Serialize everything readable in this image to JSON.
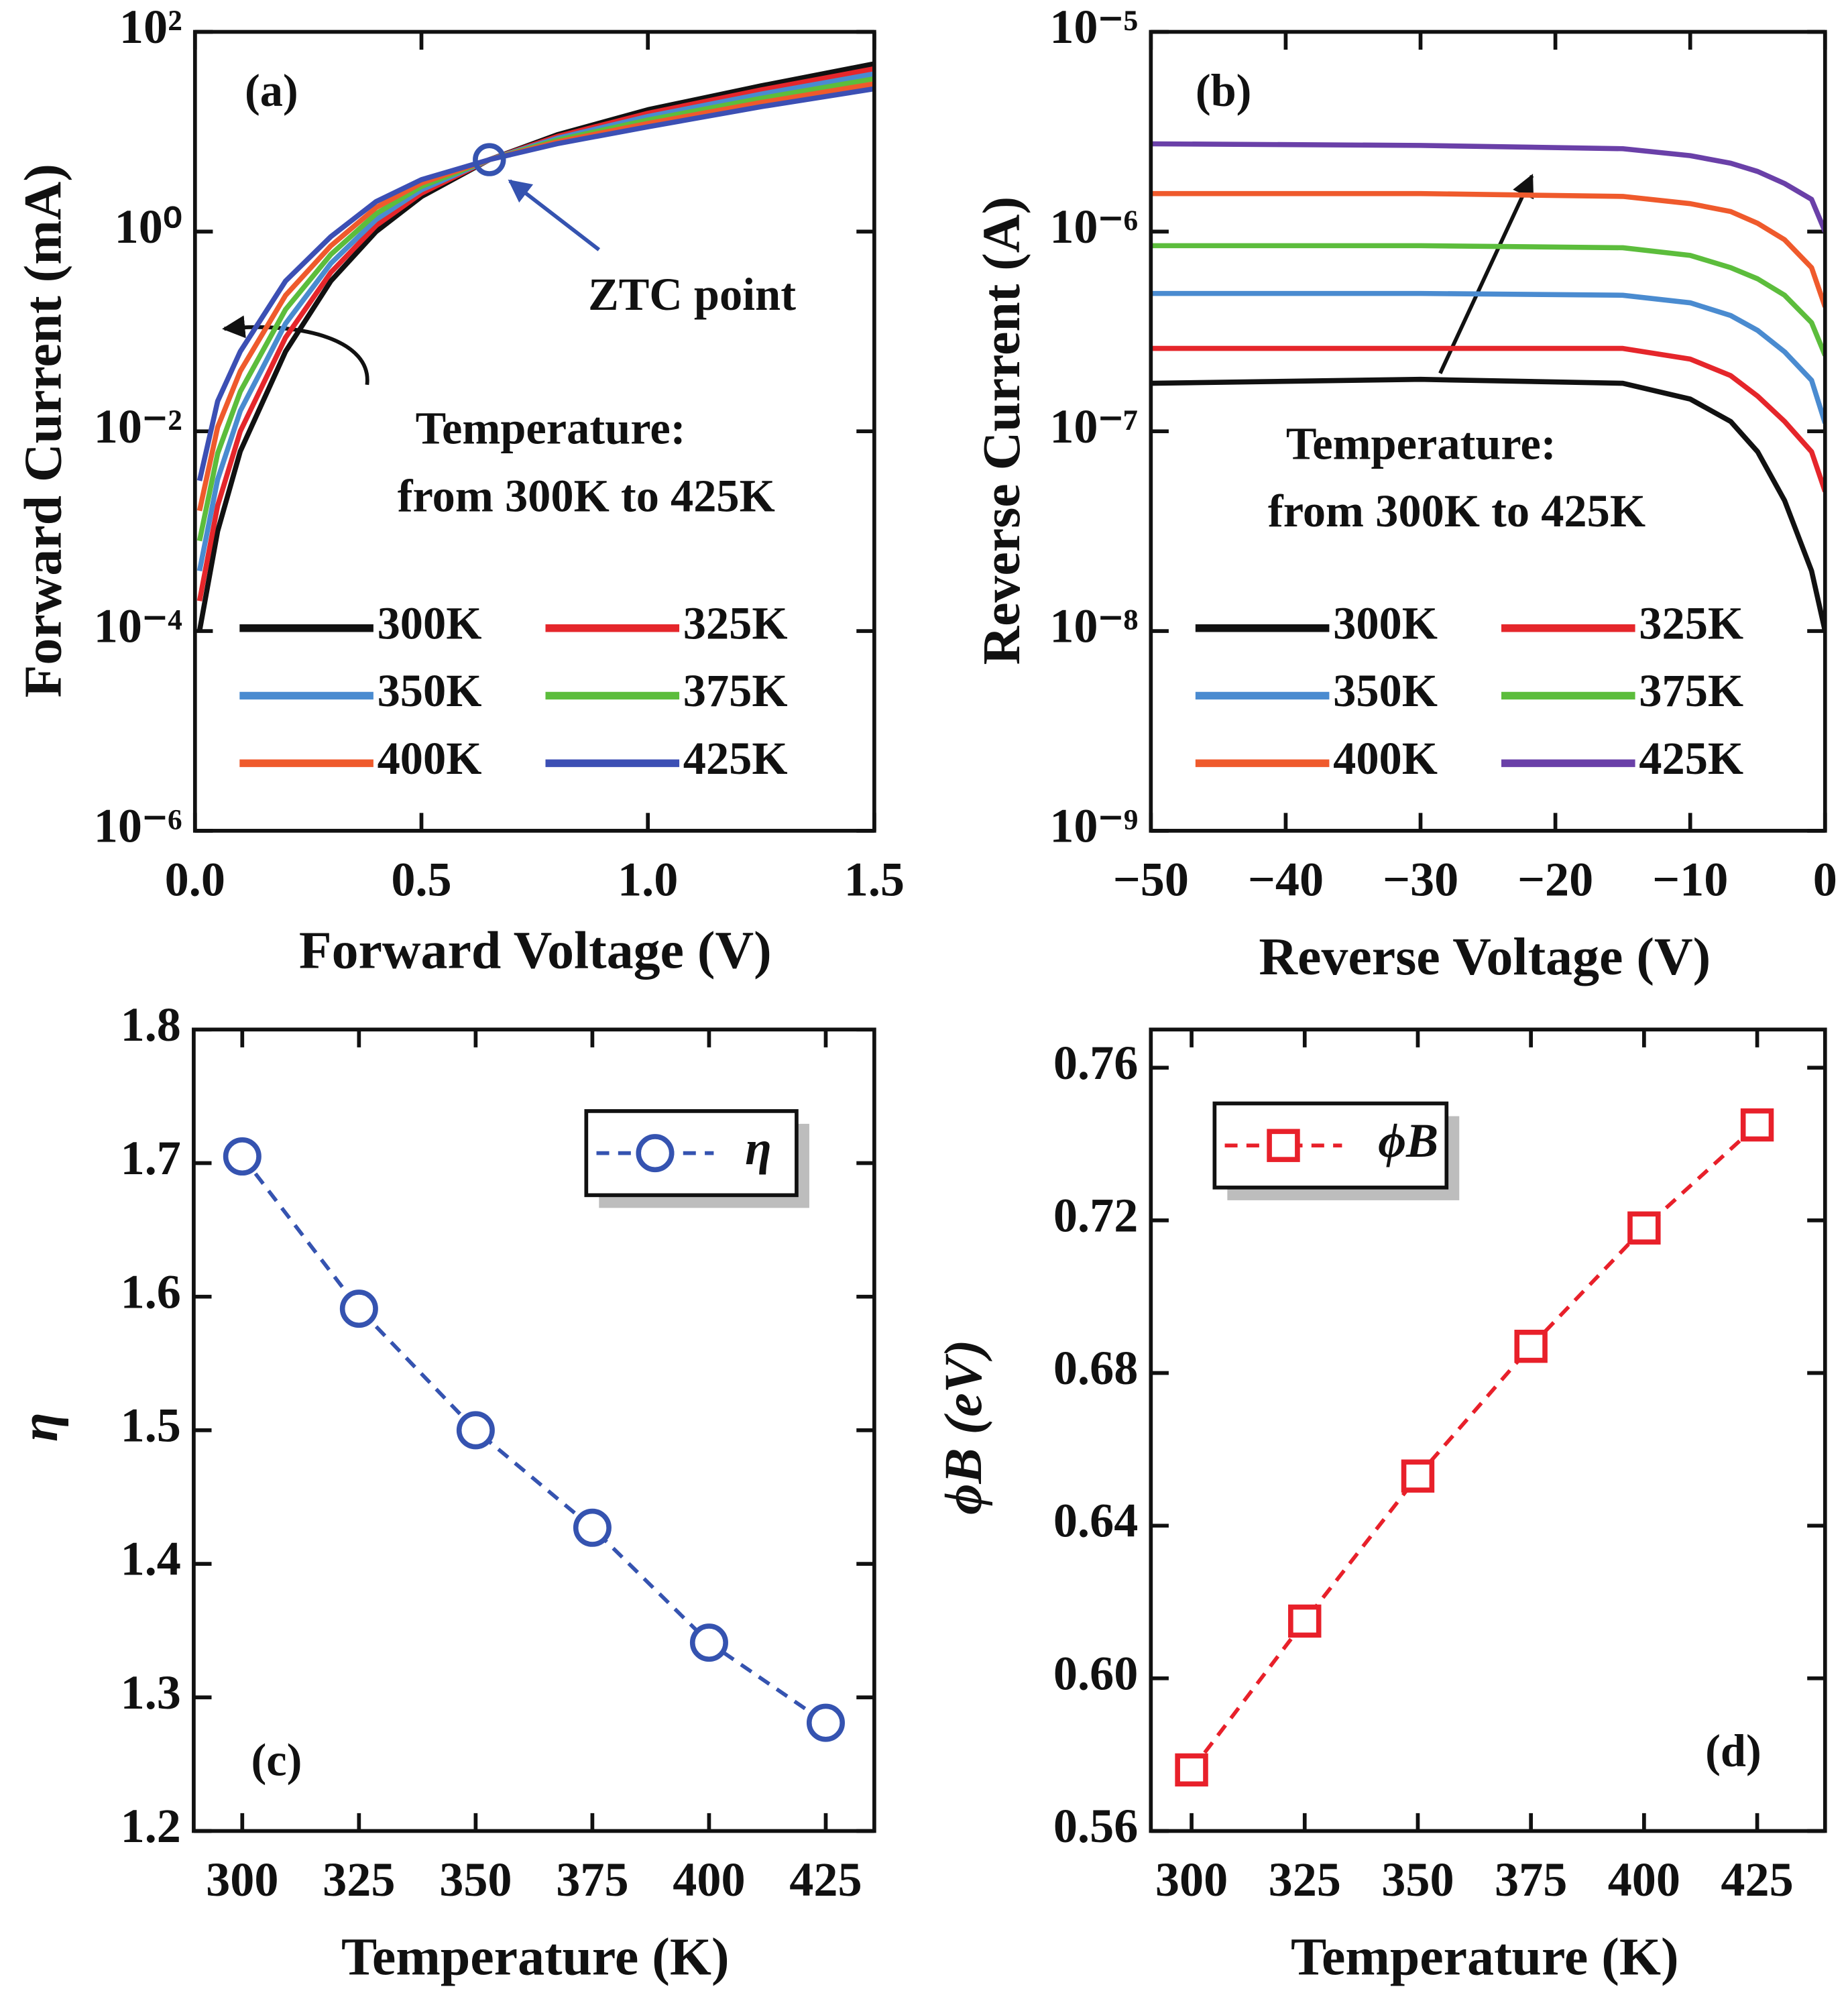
{
  "chart_data": [
    {
      "type": "line",
      "ylog": true,
      "xlabel": "Forward Voltage (V)",
      "ylabel": "Forward Current (mA)",
      "xlim": [
        0,
        1.5
      ],
      "ylim": [
        1e-06,
        100
      ],
      "xticks": [
        {
          "value": 0,
          "label": "0.0"
        },
        0.5,
        {
          "value": 1,
          "label": "1.0"
        },
        1.5
      ],
      "yticks": [
        {
          "value": 1e-06,
          "label": "10⁻⁶"
        },
        {
          "value": 0.0001,
          "label": "10⁻⁴"
        },
        {
          "value": 0.01,
          "label": "10⁻²"
        },
        {
          "value": 1,
          "label": "10⁰"
        },
        {
          "value": 100,
          "label": "10²"
        }
      ],
      "legend": "lower center",
      "annotations": [
        "(a)",
        "ZTC point",
        "Temperature:",
        "from 300K to 425K"
      ],
      "ztc_point": {
        "x": 0.65,
        "y": 5.25
      },
      "x": [
        0.01,
        0.05,
        0.1,
        0.2,
        0.3,
        0.4,
        0.5,
        0.65,
        0.8,
        1.0,
        1.25,
        1.5
      ],
      "series": [
        {
          "name": "300K",
          "color": "#111111",
          "values": [
            0.0001,
            0.001,
            0.0063,
            0.063,
            0.32,
            1,
            2.24,
            5.25,
            9.33,
            16.6,
            28.8,
            47.9
          ]
        },
        {
          "name": "325K",
          "color": "#e5262b",
          "values": [
            0.0002,
            0.0018,
            0.01,
            0.087,
            0.39,
            1.15,
            2.42,
            5.25,
            8.95,
            15.3,
            26.2,
            42.7
          ]
        },
        {
          "name": "350K",
          "color": "#4a8bd0",
          "values": [
            0.0004,
            0.0033,
            0.016,
            0.12,
            0.48,
            1.32,
            2.62,
            5.25,
            8.59,
            14.2,
            23.8,
            38
          ]
        },
        {
          "name": "375K",
          "color": "#5cbd3c",
          "values": [
            0.0008,
            0.006,
            0.025,
            0.166,
            0.59,
            1.51,
            2.83,
            5.25,
            8.24,
            13.1,
            21.6,
            33.9
          ]
        },
        {
          "name": "400K",
          "color": "#ef5a2c",
          "values": [
            0.0016,
            0.011,
            0.04,
            0.23,
            0.72,
            1.74,
            3.06,
            5.25,
            7.91,
            12.1,
            19.6,
            30.2
          ]
        },
        {
          "name": "425K",
          "color": "#3c4fb4",
          "values": [
            0.0032,
            0.02,
            0.063,
            0.32,
            0.89,
            2.0,
            3.31,
            5.25,
            7.59,
            11.2,
            17.8,
            26.9
          ]
        }
      ]
    },
    {
      "type": "line",
      "ylog": true,
      "xlabel": "Reverse Voltage (V)",
      "ylabel": "Reverse Current (A)",
      "xlim": [
        -50,
        0
      ],
      "ylim": [
        1e-09,
        1e-05
      ],
      "xticks": [
        {
          "value": -50,
          "label": "−50"
        },
        {
          "value": -40,
          "label": "−40"
        },
        {
          "value": -30,
          "label": "−30"
        },
        {
          "value": -20,
          "label": "−20"
        },
        {
          "value": -10,
          "label": "−10"
        },
        0
      ],
      "yticks": [
        {
          "value": 1e-09,
          "label": "10⁻⁹"
        },
        {
          "value": 1e-08,
          "label": "10⁻⁸"
        },
        {
          "value": 1e-07,
          "label": "10⁻⁷"
        },
        {
          "value": 1e-06,
          "label": "10⁻⁶"
        },
        {
          "value": 1e-05,
          "label": "10⁻⁵"
        }
      ],
      "legend": "lower center",
      "annotations": [
        "(b)",
        "Temperature:",
        "from 300K to 425K"
      ],
      "x": [
        -50,
        -30,
        -15,
        -10,
        -7,
        -5,
        -3,
        -1,
        0
      ],
      "series": [
        {
          "name": "300K",
          "color": "#111111",
          "values": [
            1.74e-07,
            1.82e-07,
            1.74e-07,
            1.45e-07,
            1.12e-07,
            7.9e-08,
            4.5e-08,
            2e-08,
            1e-08
          ]
        },
        {
          "name": "325K",
          "color": "#e5262b",
          "values": [
            2.6e-07,
            2.6e-07,
            2.6e-07,
            2.3e-07,
            1.9e-07,
            1.5e-07,
            1.12e-07,
            7.9e-08,
            5e-08
          ]
        },
        {
          "name": "350K",
          "color": "#4a8bd0",
          "values": [
            4.9e-07,
            4.9e-07,
            4.8e-07,
            4.4e-07,
            3.8e-07,
            3.2e-07,
            2.5e-07,
            1.8e-07,
            1.1e-07
          ]
        },
        {
          "name": "375K",
          "color": "#5cbd3c",
          "values": [
            8.5e-07,
            8.5e-07,
            8.3e-07,
            7.6e-07,
            6.6e-07,
            5.8e-07,
            4.8e-07,
            3.5e-07,
            2.4e-07
          ]
        },
        {
          "name": "400K",
          "color": "#ef5a2c",
          "values": [
            1.55e-06,
            1.55e-06,
            1.5e-06,
            1.38e-06,
            1.26e-06,
            1.1e-06,
            9.1e-07,
            6.6e-07,
            4.2e-07
          ]
        },
        {
          "name": "425K",
          "color": "#6a40a8",
          "values": [
            2.75e-06,
            2.7e-06,
            2.6e-06,
            2.4e-06,
            2.2e-06,
            2e-06,
            1.74e-06,
            1.45e-06,
            1e-06
          ]
        }
      ]
    },
    {
      "type": "line",
      "marker": "circle",
      "dash": true,
      "xlabel": "Temperature (K)",
      "ylabel": "η",
      "xlim": [
        289.6,
        435.4
      ],
      "ylim": [
        1.2,
        1.8
      ],
      "xticks": [
        300,
        325,
        350,
        375,
        400,
        425
      ],
      "yticks": [
        1.2,
        1.3,
        1.4,
        1.5,
        1.6,
        1.7,
        1.8
      ],
      "legend": "upper right",
      "annotations": [
        "(c)"
      ],
      "x": [
        300,
        325,
        350,
        375,
        400,
        425
      ],
      "series": [
        {
          "name": "η",
          "color": "#3553b0",
          "values": [
            1.705,
            1.591,
            1.5,
            1.427,
            1.341,
            1.281
          ]
        }
      ]
    },
    {
      "type": "line",
      "marker": "square",
      "dash": true,
      "xlabel": "Temperature (K)",
      "ylabel": "ϕB (eV)",
      "xlim": [
        291,
        440
      ],
      "ylim": [
        0.56,
        0.77
      ],
      "xticks": [
        300,
        325,
        350,
        375,
        400,
        425
      ],
      "yticks": [
        0.56,
        {
          "value": 0.6,
          "label": "0.60"
        },
        0.64,
        0.68,
        0.72,
        0.76
      ],
      "legend": "upper left",
      "annotations": [
        "(d)"
      ],
      "x": [
        300,
        325,
        350,
        375,
        400,
        425
      ],
      "series": [
        {
          "name": "ϕB",
          "color": "#e8202a",
          "values": [
            0.576,
            0.615,
            0.653,
            0.687,
            0.718,
            0.745
          ]
        }
      ]
    }
  ]
}
